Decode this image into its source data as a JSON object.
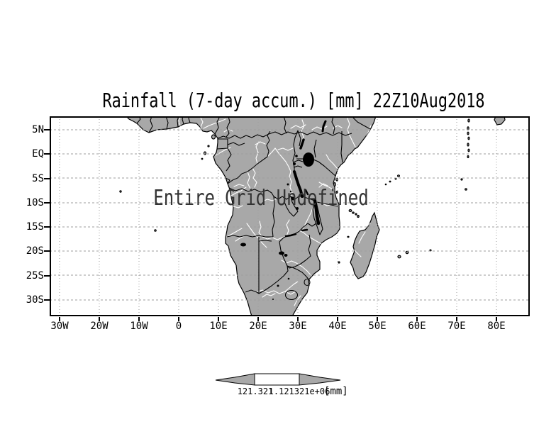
{
  "title": "Rainfall (7-day accum.) [mm] 22Z10Aug2018",
  "map": {
    "status_message": "Entire Grid Undefined",
    "y_axis_labels": [
      "5N",
      "EQ",
      "5S",
      "10S",
      "15S",
      "20S",
      "25S",
      "30S"
    ],
    "x_axis_labels": [
      "30W",
      "20W",
      "10W",
      "0",
      "10E",
      "20E",
      "30E",
      "40E",
      "50E",
      "60E",
      "70E",
      "80E"
    ],
    "colors": {
      "land": "#a8a8a8",
      "ocean": "#ffffff",
      "coast": "#000000",
      "border_line": "#000000",
      "river": "#ffffff",
      "lake": "#000000",
      "grid": "#9e9e9e",
      "frame": "#000000",
      "undefined_text": "#333333"
    }
  },
  "colorbar": {
    "left_label": "121.321",
    "right_label": "1.121321e+06",
    "unit_label": "[mm]"
  }
}
